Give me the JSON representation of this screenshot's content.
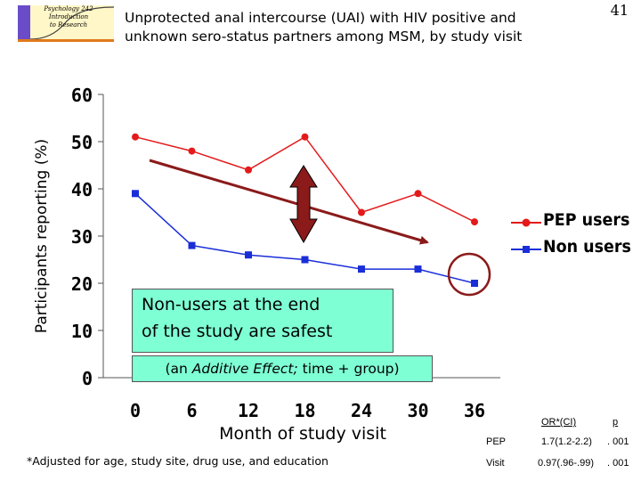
{
  "header": {
    "logo_text": [
      "Psychology 242",
      "Introduction",
      "to Research"
    ],
    "title_line1": "Unprotected anal intercourse (UAI) with HIV positive and",
    "title_line2": "unknown sero-status partners among MSM, by study visit",
    "page_number": "41"
  },
  "chart_data": {
    "type": "line",
    "title": "Unprotected anal intercourse (UAI) with HIV positive and unknown sero-status partners among MSM, by study visit",
    "xlabel": "Month of study visit",
    "ylabel": "Participants reporting (%)",
    "x": [
      0,
      6,
      12,
      18,
      24,
      30,
      36
    ],
    "x_tick_labels": [
      "0",
      "6",
      "12",
      "18",
      "24",
      "30",
      "36"
    ],
    "y_tick_labels": [
      "0",
      "10",
      "20",
      "30",
      "40",
      "50",
      "60"
    ],
    "ylim": [
      0,
      60
    ],
    "grid": false,
    "legend_position": "right",
    "series": [
      {
        "name": "PEP users",
        "color": "#e41a1a",
        "marker": "circle",
        "values": [
          51,
          48,
          44,
          51,
          35,
          39,
          33
        ]
      },
      {
        "name": "Non users",
        "color": "#1a2ed8",
        "marker": "square",
        "values": [
          39,
          28,
          26,
          25,
          23,
          23,
          20
        ]
      }
    ],
    "annotations": {
      "callout_line1": "Non-users at the end",
      "callout_line2": "of the study are safest",
      "additive_prefix": "(an ",
      "additive_italic": "Additive Effect;",
      "additive_suffix": " time + group)"
    }
  },
  "footnote": "*Adjusted for age, study site, drug use, and education",
  "or_table": {
    "header_or": "OR*(CI)",
    "header_p": "p",
    "rows": [
      {
        "label": "PEP",
        "or": "1.7(1.2-2.2)",
        "p": ". 001"
      },
      {
        "label": "Visit",
        "or": "0.97(.96-.99)",
        "p": ". 001"
      }
    ]
  },
  "colors": {
    "callout_bg": "#7fffd4",
    "arrow": "#8b1a1a",
    "circle": "#8b1a1a",
    "text": "#000000"
  }
}
